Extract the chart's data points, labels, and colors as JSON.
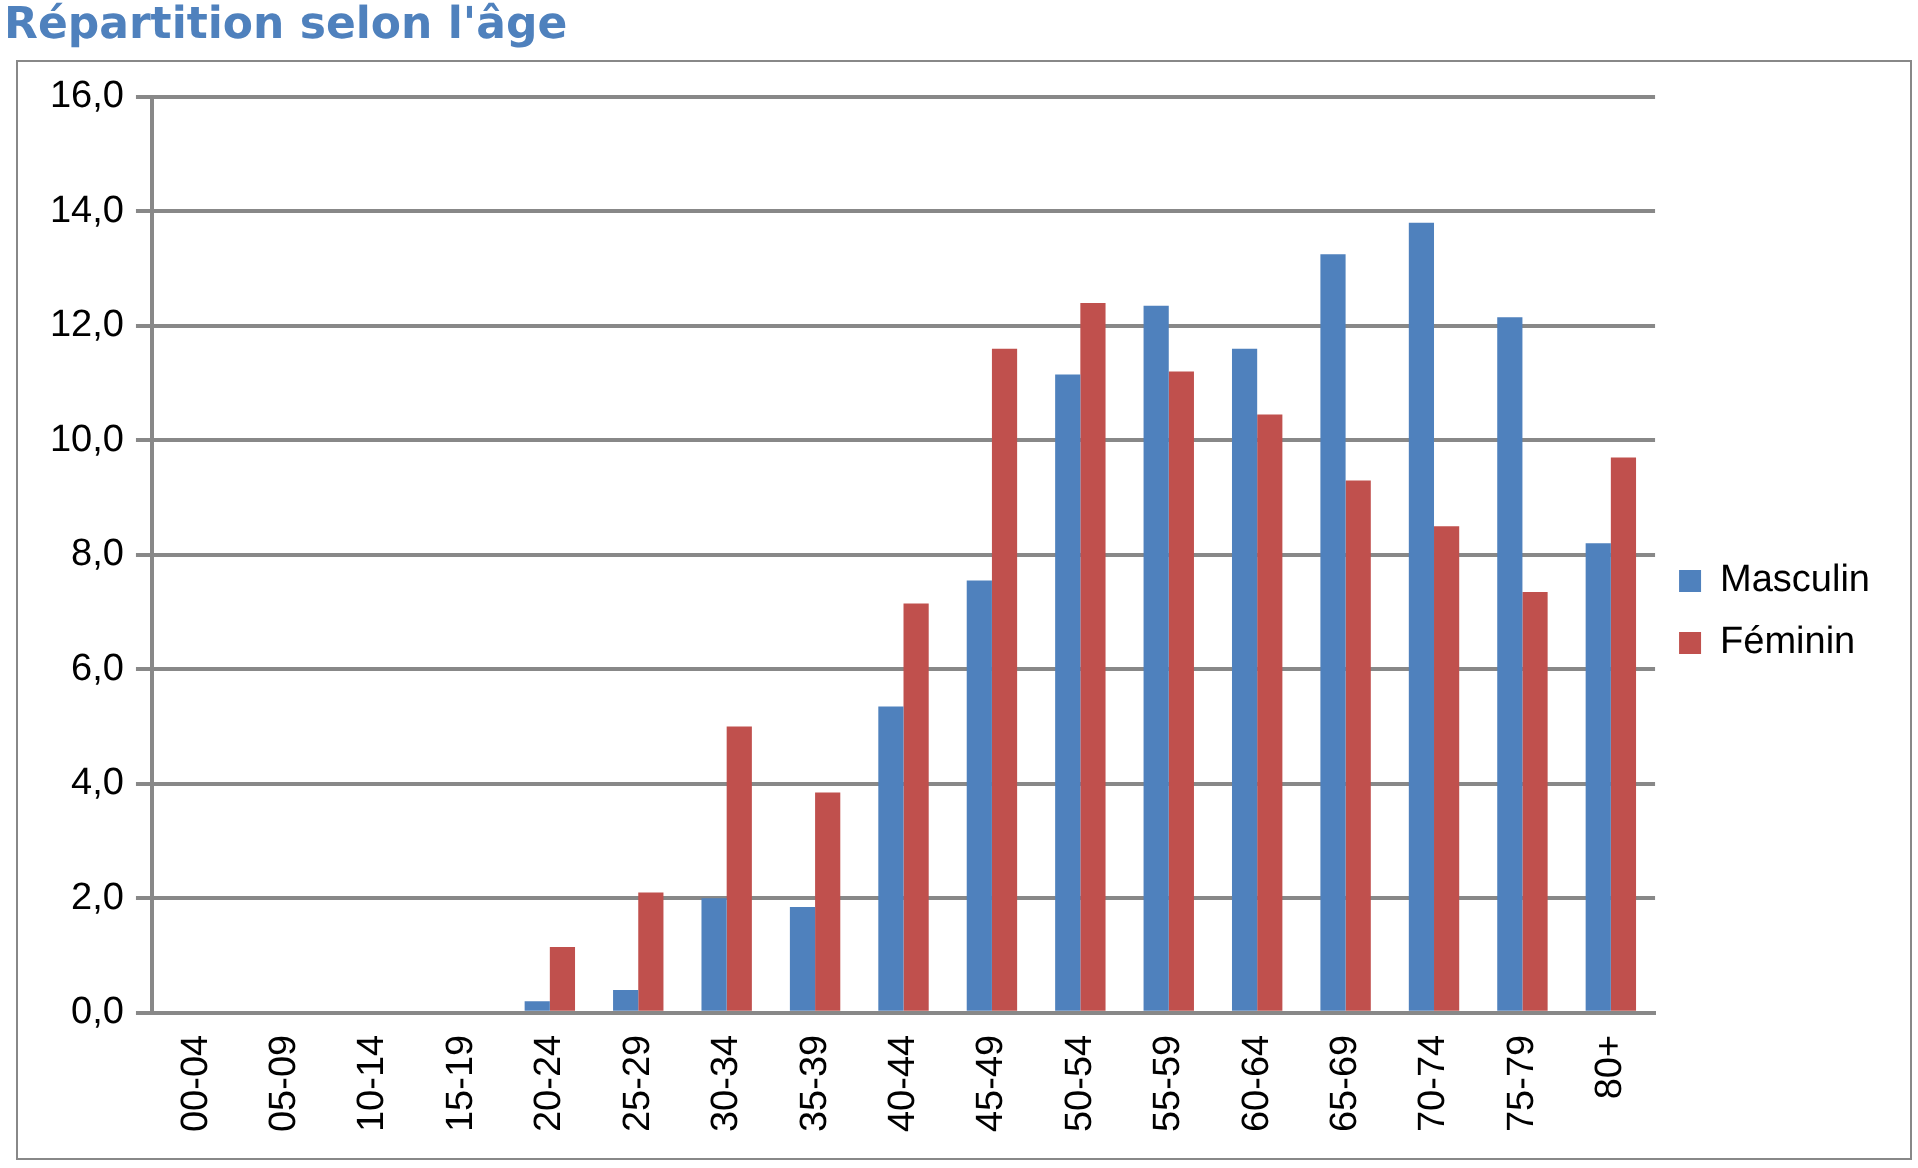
{
  "chart_data": {
    "type": "bar",
    "title": "Répartition selon l'âge",
    "categories": [
      "00-04",
      "05-09",
      "10-14",
      "15-19",
      "20-24",
      "25-29",
      "30-34",
      "35-39",
      "40-44",
      "45-49",
      "50-54",
      "55-59",
      "60-64",
      "65-69",
      "70-74",
      "75-79",
      "80+"
    ],
    "series": [
      {
        "name": "Masculin",
        "color": "#4f81bd",
        "values": [
          0,
          0,
          0,
          0,
          0.2,
          0.4,
          2.0,
          1.85,
          5.35,
          7.55,
          11.15,
          12.35,
          11.6,
          13.25,
          13.8,
          12.15,
          8.2
        ]
      },
      {
        "name": "Féminin",
        "color": "#c0504d",
        "values": [
          0,
          0,
          0,
          0,
          1.15,
          2.1,
          5.0,
          3.85,
          7.15,
          11.6,
          12.4,
          11.2,
          10.45,
          9.3,
          8.5,
          7.35,
          9.7
        ]
      }
    ],
    "ylim": [
      0,
      16
    ],
    "yticks": [
      {
        "value": 0,
        "label": "0,0"
      },
      {
        "value": 2,
        "label": "2,0"
      },
      {
        "value": 4,
        "label": "4,0"
      },
      {
        "value": 6,
        "label": "6,0"
      },
      {
        "value": 8,
        "label": "8,0"
      },
      {
        "value": 10,
        "label": "10,0"
      },
      {
        "value": 12,
        "label": "12,0"
      },
      {
        "value": 14,
        "label": "14,0"
      },
      {
        "value": 16,
        "label": "16,0"
      }
    ],
    "grid": "y",
    "legend": "right"
  }
}
